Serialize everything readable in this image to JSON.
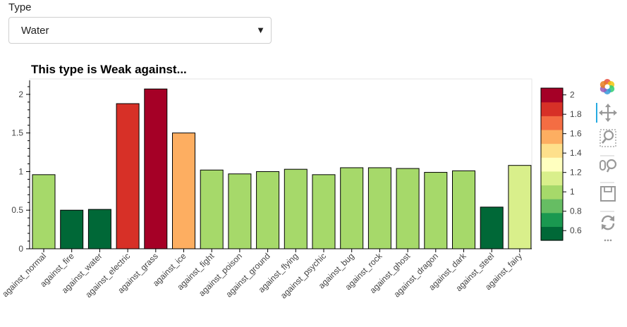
{
  "widget": {
    "label": "Type",
    "selected": "Water"
  },
  "toolbar": {
    "items": [
      "bokeh-logo-icon",
      "pan-icon",
      "box-zoom-icon",
      "wheel-zoom-icon",
      "save-icon",
      "reset-icon",
      "more-icon"
    ],
    "active": "pan-icon"
  },
  "chart_data": {
    "type": "bar",
    "title": "This type is Weak against...",
    "xlabel": "",
    "ylabel": "",
    "categories": [
      "against_normal",
      "against_fire",
      "against_water",
      "against_electric",
      "against_grass",
      "against_ice",
      "against_fight",
      "against_poison",
      "against_ground",
      "against_flying",
      "against_psychic",
      "against_bug",
      "against_rock",
      "against_ghost",
      "against_dragon",
      "against_dark",
      "against_steel",
      "against_fairy"
    ],
    "values": [
      0.96,
      0.5,
      0.51,
      1.88,
      2.07,
      1.5,
      1.02,
      0.97,
      1.0,
      1.03,
      0.96,
      1.05,
      1.05,
      1.04,
      0.99,
      1.01,
      0.54,
      1.08
    ],
    "ylim": [
      0,
      2.2
    ],
    "yticks": [
      0,
      0.5,
      1,
      1.5,
      2
    ],
    "ytick_labels": [
      "0",
      "0.5",
      "1",
      "1.5",
      "2"
    ],
    "colorbar": {
      "range": [
        0.5,
        2.07
      ],
      "ticks": [
        0.6,
        0.8,
        1,
        1.2,
        1.4,
        1.6,
        1.8,
        2
      ],
      "tick_labels": [
        "0.6",
        "0.8",
        "1",
        "1.2",
        "1.4",
        "1.6",
        "1.8",
        "2"
      ],
      "palette": [
        "#006837",
        "#1a9850",
        "#66bd63",
        "#a6d96a",
        "#d9ef8b",
        "#ffffbf",
        "#fee08b",
        "#fdae61",
        "#f46d43",
        "#d73027",
        "#a50026"
      ]
    },
    "grid": false,
    "legend": "none"
  }
}
